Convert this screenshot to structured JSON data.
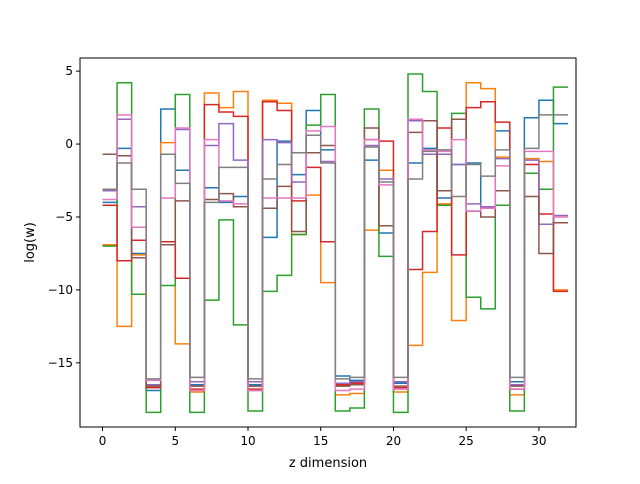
{
  "chart_data": {
    "type": "line",
    "title": "",
    "xlabel": "z dimension",
    "ylabel": "log(w)",
    "xlim": [
      -1.55,
      32.55
    ],
    "ylim": [
      -19.4,
      5.9
    ],
    "xticks": [
      0,
      5,
      10,
      15,
      20,
      25,
      30
    ],
    "yticks": [
      5,
      0,
      -5,
      -10,
      -15
    ],
    "xtick_labels": [
      "0",
      "5",
      "10",
      "15",
      "20",
      "25",
      "30"
    ],
    "ytick_labels": [
      "5",
      "0",
      "−5",
      "−10",
      "−15"
    ],
    "grid": false,
    "legend": "none",
    "step": "post",
    "x": [
      0,
      1,
      2,
      3,
      4,
      5,
      6,
      7,
      8,
      9,
      10,
      11,
      12,
      13,
      14,
      15,
      16,
      17,
      18,
      19,
      20,
      21,
      22,
      23,
      24,
      25,
      26,
      27,
      28,
      29,
      30,
      31
    ],
    "series": [
      {
        "color": "#1f77b4",
        "values": [
          -4.0,
          -0.3,
          -7.5,
          -16.9,
          2.4,
          -1.8,
          -16.5,
          -3.0,
          -4.0,
          -3.6,
          -16.5,
          -6.4,
          0.2,
          -2.1,
          2.3,
          -0.4,
          -15.9,
          -16.2,
          -1.1,
          -6.1,
          -16.4,
          -1.3,
          -0.3,
          -3.7,
          -1.4,
          -1.3,
          -4.3,
          0.9,
          -16.3,
          1.8,
          3.0,
          1.4
        ]
      },
      {
        "color": "#ff7f0e",
        "values": [
          -6.9,
          -12.5,
          -7.6,
          -16.7,
          0.1,
          -13.7,
          -17.0,
          3.5,
          2.5,
          3.6,
          -16.9,
          3.0,
          2.8,
          -6.2,
          -3.5,
          -9.5,
          -17.2,
          -17.1,
          -5.9,
          -1.8,
          -17.0,
          -13.8,
          -8.8,
          -4.1,
          -12.1,
          4.2,
          3.8,
          -0.9,
          -17.2,
          -1.0,
          -1.2,
          -10.0
        ]
      },
      {
        "color": "#2ca02c",
        "values": [
          -7.0,
          4.2,
          -10.3,
          -18.4,
          -9.7,
          3.4,
          -18.4,
          -10.7,
          -5.2,
          -12.4,
          -18.3,
          -10.1,
          -9.0,
          -6.2,
          1.3,
          3.4,
          -18.3,
          -18.1,
          2.4,
          -7.7,
          -18.4,
          4.8,
          3.6,
          -4.2,
          2.1,
          -10.5,
          -11.3,
          -4.2,
          -18.3,
          -2.0,
          -3.1,
          3.9
        ]
      },
      {
        "color": "#d62728",
        "values": [
          -4.2,
          -8.0,
          -6.6,
          -16.7,
          -6.7,
          -9.2,
          -16.8,
          2.7,
          2.2,
          1.9,
          -16.8,
          2.9,
          2.3,
          -3.9,
          -1.6,
          -6.7,
          -16.5,
          -16.4,
          0.3,
          0.2,
          -16.7,
          -8.6,
          -6.0,
          1.1,
          -7.6,
          2.5,
          2.9,
          1.5,
          -16.8,
          -1.4,
          -4.8,
          -10.1
        ]
      },
      {
        "color": "#9467bd",
        "values": [
          -3.2,
          1.7,
          -4.3,
          -16.5,
          -0.7,
          1.0,
          -16.3,
          -0.1,
          1.4,
          -1.1,
          -16.3,
          0.3,
          0.1,
          -2.6,
          0.6,
          -1.2,
          -16.4,
          -16.3,
          -0.1,
          -2.4,
          -16.3,
          1.6,
          -0.7,
          -0.7,
          -1.4,
          -4.1,
          -4.3,
          -1.0,
          -16.5,
          -1.1,
          -5.5,
          -4.9
        ]
      },
      {
        "color": "#8c564b",
        "values": [
          -0.7,
          -0.8,
          -7.8,
          -16.6,
          -6.9,
          -3.9,
          -16.6,
          -3.8,
          -3.4,
          -4.3,
          -16.6,
          -4.4,
          -2.9,
          -6.0,
          -0.6,
          -0.1,
          -16.6,
          -16.5,
          1.1,
          -5.6,
          -16.6,
          0.8,
          1.6,
          -3.2,
          1.7,
          -4.6,
          -5.0,
          -3.2,
          -16.6,
          -3.6,
          -7.5,
          -5.4
        ]
      },
      {
        "color": "#e377c2",
        "values": [
          -3.8,
          2.0,
          -5.7,
          -16.2,
          -3.7,
          1.1,
          -16.9,
          0.3,
          -3.9,
          -4.1,
          -16.9,
          -3.7,
          -3.7,
          -3.7,
          0.9,
          1.2,
          -16.9,
          -16.8,
          0.3,
          -2.8,
          -16.8,
          1.7,
          -0.4,
          -0.5,
          0.3,
          -4.6,
          -4.4,
          -1.5,
          -16.8,
          -0.5,
          -0.5,
          -5.0
        ]
      },
      {
        "color": "#7f7f7f",
        "values": [
          -3.1,
          -1.3,
          -3.1,
          -16.1,
          -0.7,
          -2.7,
          -16.0,
          -4.0,
          -1.6,
          -1.6,
          -16.1,
          -2.4,
          -1.4,
          -0.6,
          0.6,
          -1.3,
          -16.1,
          -16.0,
          -0.2,
          -2.6,
          -16.0,
          -2.4,
          -0.5,
          -0.4,
          -3.6,
          -1.4,
          -2.2,
          -0.4,
          -16.0,
          -0.3,
          2.0,
          2.0
        ]
      }
    ]
  }
}
